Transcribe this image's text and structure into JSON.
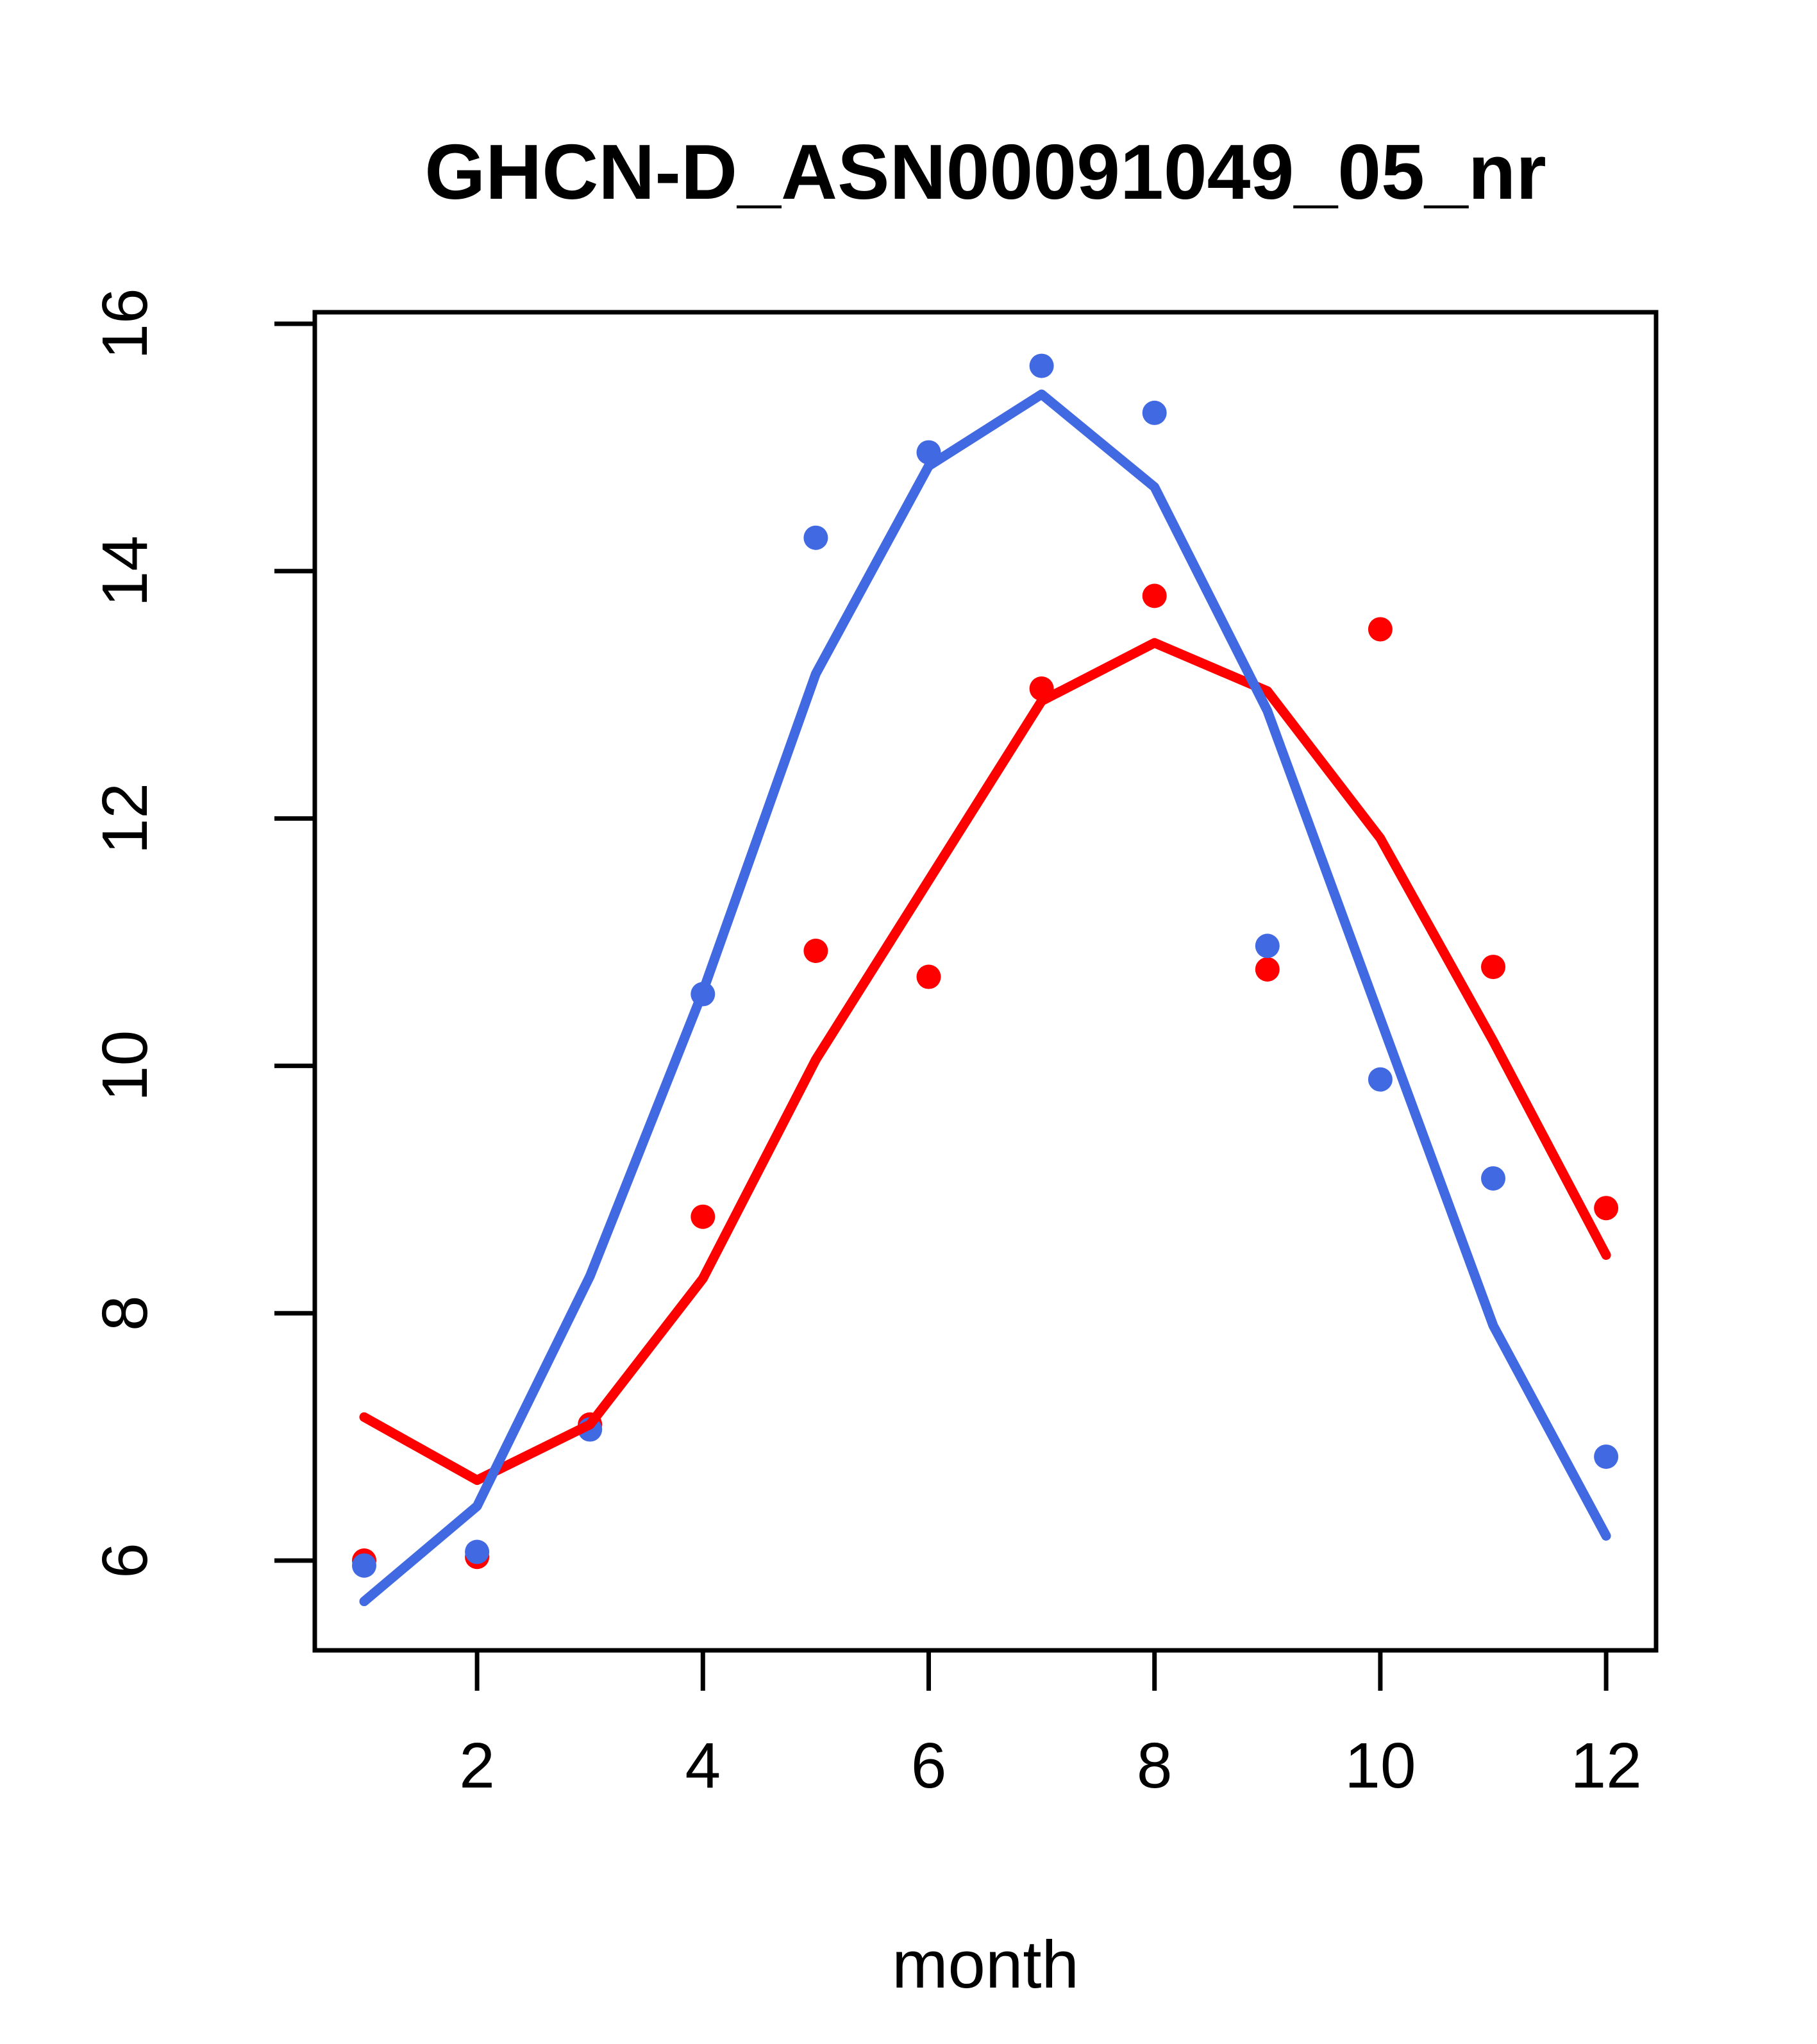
{
  "figure": {
    "title": "GHCN-D_ASN00091049_05_nr",
    "xlabel": "month"
  },
  "chart_data": {
    "type": "scatter",
    "title": "GHCN-D_ASN00091049_05_nr",
    "xlabel": "month",
    "ylabel": "",
    "x": [
      1,
      2,
      3,
      4,
      5,
      6,
      7,
      8,
      9,
      10,
      11,
      12
    ],
    "x_ticks": [
      2,
      4,
      6,
      8,
      10,
      12
    ],
    "y_ticks": [
      6,
      8,
      10,
      12,
      14,
      16
    ],
    "xlim": [
      0.56,
      12.44
    ],
    "ylim": [
      5.27,
      16.1
    ],
    "grid": "off",
    "legend": "none",
    "colors": {
      "blue": "#4169E1",
      "red": "#FF0000",
      "axis": "#000000"
    },
    "series": [
      {
        "name": "red-points",
        "kind": "points",
        "color": "#FF0000",
        "values": [
          6.0,
          6.03,
          7.1,
          8.78,
          10.93,
          10.72,
          13.05,
          13.8,
          10.78,
          13.53,
          10.8,
          8.85
        ]
      },
      {
        "name": "blue-points",
        "kind": "points",
        "color": "#4169E1",
        "values": [
          5.96,
          6.07,
          7.06,
          10.58,
          14.27,
          14.96,
          15.66,
          15.28,
          10.97,
          9.89,
          9.09,
          6.84
        ]
      },
      {
        "name": "red-smooth-line",
        "kind": "line",
        "color": "#FF0000",
        "values": [
          7.16,
          6.65,
          7.1,
          8.28,
          10.05,
          11.5,
          12.95,
          13.42,
          13.03,
          11.84,
          10.2,
          8.47
        ]
      },
      {
        "name": "blue-smooth-line",
        "kind": "line",
        "color": "#4169E1",
        "values": [
          5.67,
          6.44,
          8.3,
          10.6,
          13.17,
          14.85,
          15.43,
          14.68,
          12.87,
          10.38,
          7.9,
          6.2
        ]
      }
    ]
  }
}
